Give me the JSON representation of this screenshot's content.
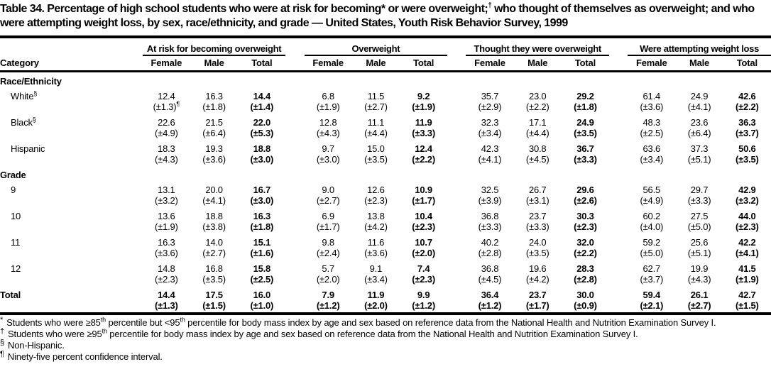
{
  "title": {
    "part1": "Table 34. Percentage of high school students who were at risk for becoming* or were overweight;",
    "sup_dagger": "†",
    "part2": " who thought of themselves as overweight; and who were attempting weight loss, by sex, race/ethnicity, and grade — United States, Youth Risk Behavior Survey, 1999"
  },
  "table": {
    "category_header": "Category",
    "groups": [
      {
        "label": "At risk for becoming overweight",
        "cols": [
          "Female",
          "Male",
          "Total"
        ]
      },
      {
        "label": "Overweight",
        "cols": [
          "Female",
          "Male",
          "Total"
        ]
      },
      {
        "label": "Thought they were overweight",
        "cols": [
          "Female",
          "Male",
          "Total"
        ]
      },
      {
        "label": "Were attempting weight loss",
        "cols": [
          "Female",
          "Male",
          "Total"
        ]
      }
    ],
    "sections": [
      {
        "heading": "Race/Ethnicity",
        "rows": [
          {
            "label": "White",
            "label_sup": "§",
            "ci_sup": "¶",
            "values": [
              "12.4",
              "16.3",
              "14.4",
              "6.8",
              "11.5",
              "9.2",
              "35.7",
              "23.0",
              "29.2",
              "61.4",
              "24.9",
              "42.6"
            ],
            "ci": [
              "(±1.3)",
              "(±1.8)",
              "(±1.4)",
              "(±1.9)",
              "(±2.7)",
              "(±1.9)",
              "(±2.9)",
              "(±2.2)",
              "(±1.8)",
              "(±3.6)",
              "(±4.1)",
              "(±2.2)"
            ]
          },
          {
            "label": "Black",
            "label_sup": "§",
            "values": [
              "22.6",
              "21.5",
              "22.0",
              "12.8",
              "11.1",
              "11.9",
              "32.3",
              "17.1",
              "24.9",
              "48.3",
              "23.6",
              "36.3"
            ],
            "ci": [
              "(±4.9)",
              "(±6.4)",
              "(±5.3)",
              "(±4.3)",
              "(±4.4)",
              "(±3.3)",
              "(±3.4)",
              "(±4.4)",
              "(±3.5)",
              "(±2.5)",
              "(±6.4)",
              "(±3.7)"
            ]
          },
          {
            "label": "Hispanic",
            "values": [
              "18.3",
              "19.3",
              "18.8",
              "9.7",
              "15.0",
              "12.4",
              "42.3",
              "30.8",
              "36.7",
              "63.6",
              "37.3",
              "50.6"
            ],
            "ci": [
              "(±4.3)",
              "(±3.6)",
              "(±3.0)",
              "(±3.0)",
              "(±3.5)",
              "(±2.2)",
              "(±4.1)",
              "(±4.5)",
              "(±3.3)",
              "(±3.4)",
              "(±5.1)",
              "(±3.5)"
            ]
          }
        ]
      },
      {
        "heading": "Grade",
        "rows": [
          {
            "label": "9",
            "values": [
              "13.1",
              "20.0",
              "16.7",
              "9.0",
              "12.6",
              "10.9",
              "32.5",
              "26.7",
              "29.6",
              "56.5",
              "29.7",
              "42.9"
            ],
            "ci": [
              "(±3.2)",
              "(±4.1)",
              "(±3.0)",
              "(±2.7)",
              "(±2.3)",
              "(±1.7)",
              "(±3.9)",
              "(±3.1)",
              "(±2.6)",
              "(±4.9)",
              "(±3.3)",
              "(±3.2)"
            ]
          },
          {
            "label": "10",
            "values": [
              "13.6",
              "18.8",
              "16.3",
              "6.9",
              "13.8",
              "10.4",
              "36.8",
              "23.7",
              "30.3",
              "60.2",
              "27.5",
              "44.0"
            ],
            "ci": [
              "(±1.9)",
              "(±3.8)",
              "(±1.8)",
              "(±1.7)",
              "(±4.2)",
              "(±2.3)",
              "(±3.3)",
              "(±3.3)",
              "(±2.3)",
              "(±4.0)",
              "(±5.0)",
              "(±2.3)"
            ]
          },
          {
            "label": "11",
            "values": [
              "16.3",
              "14.0",
              "15.1",
              "9.8",
              "11.6",
              "10.7",
              "40.2",
              "24.0",
              "32.0",
              "59.2",
              "25.6",
              "42.2"
            ],
            "ci": [
              "(±3.6)",
              "(±2.7)",
              "(±1.6)",
              "(±2.4)",
              "(±3.6)",
              "(±2.0)",
              "(±2.8)",
              "(±3.5)",
              "(±2.2)",
              "(±5.0)",
              "(±5.1)",
              "(±4.1)"
            ]
          },
          {
            "label": "12",
            "values": [
              "14.8",
              "16.8",
              "15.8",
              "5.7",
              "9.1",
              "7.4",
              "36.8",
              "19.6",
              "28.3",
              "62.7",
              "19.9",
              "41.5"
            ],
            "ci": [
              "(±2.3)",
              "(±3.5)",
              "(±2.5)",
              "(±2.0)",
              "(±3.4)",
              "(±2.3)",
              "(±4.5)",
              "(±4.2)",
              "(±2.8)",
              "(±3.7)",
              "(±4.3)",
              "(±1.9)"
            ]
          }
        ]
      }
    ],
    "total_row": {
      "label": "Total",
      "values": [
        "14.4",
        "17.5",
        "16.0",
        "7.9",
        "11.9",
        "9.9",
        "36.4",
        "23.7",
        "30.0",
        "59.4",
        "26.1",
        "42.7"
      ],
      "ci": [
        "(±1.3)",
        "(±1.5)",
        "(±1.0)",
        "(±1.2)",
        "(±2.0)",
        "(±1.2)",
        "(±1.2)",
        "(±1.7)",
        "(±0.9)",
        "(±2.1)",
        "(±2.7)",
        "(±1.5)"
      ]
    }
  },
  "footnotes": [
    {
      "marker": "*",
      "segments": [
        {
          "text": "Students who were ≥85"
        },
        {
          "sup": "th"
        },
        {
          "text": " percentile but <95"
        },
        {
          "sup": "th"
        },
        {
          "text": " percentile for body mass index by age and sex based on reference data from the National Health and Nutrition Examination Survey I."
        }
      ]
    },
    {
      "marker": "†",
      "segments": [
        {
          "text": "Students who were ≥95"
        },
        {
          "sup": "th"
        },
        {
          "text": " percentile for body mass index by age and sex based on reference data from the National Health and Nutrition Examination Survey I."
        }
      ]
    },
    {
      "marker": "§",
      "segments": [
        {
          "text": "Non-Hispanic."
        }
      ]
    },
    {
      "marker": "¶",
      "segments": [
        {
          "text": "Ninety-five percent confidence interval."
        }
      ]
    }
  ]
}
